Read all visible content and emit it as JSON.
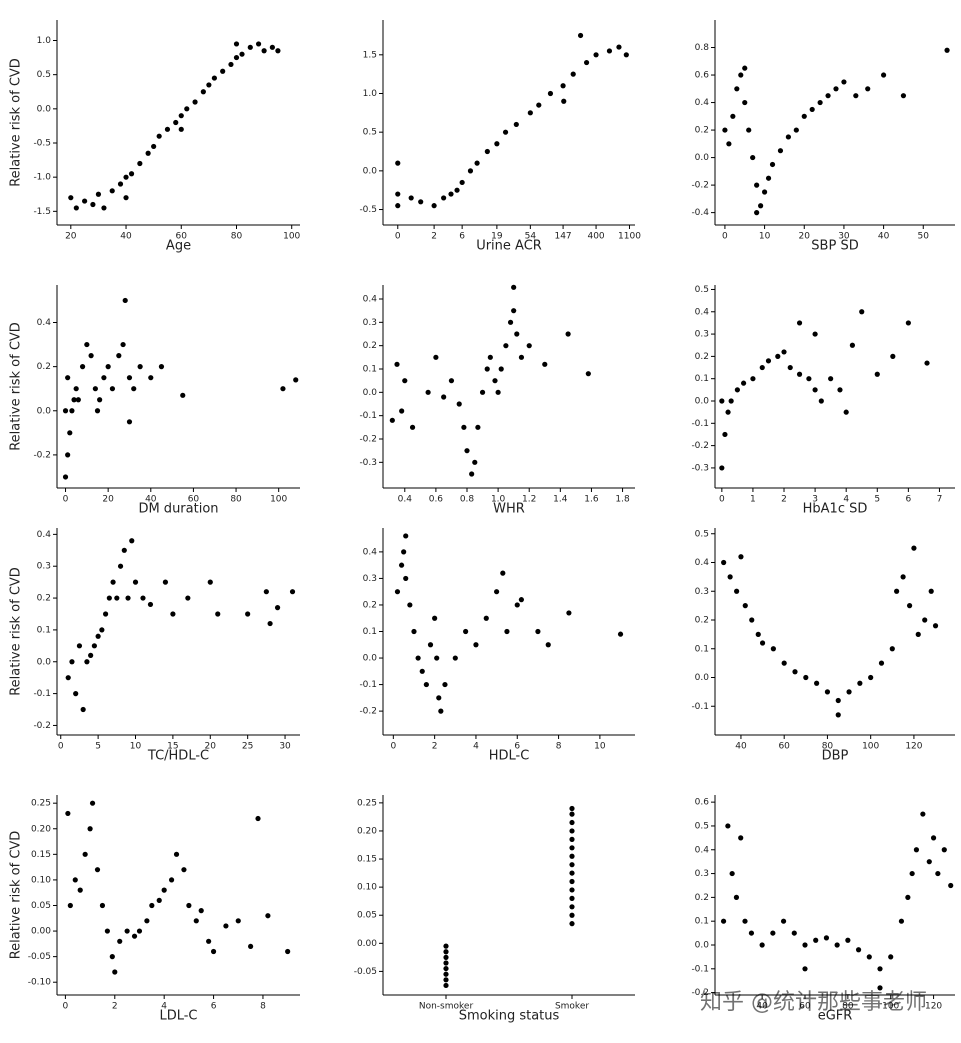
{
  "chart_data": [
    {
      "type": "scatter",
      "x_label": "Age",
      "y_label": "Relative risk of CVD",
      "color": "#000000",
      "xlim": [
        15,
        103
      ],
      "ylim": [
        -1.7,
        1.3
      ],
      "xticks": [
        20,
        40,
        60,
        80,
        100
      ],
      "yticks": [
        -1.5,
        {
          "value": -1,
          "label": "-1.0"
        },
        -0.5,
        {
          "value": 0,
          "label": "0.0"
        },
        0.5,
        {
          "value": 1,
          "label": "1.0"
        }
      ],
      "x": [
        20,
        22,
        25,
        28,
        30,
        32,
        35,
        38,
        40,
        42,
        45,
        48,
        50,
        52,
        55,
        58,
        60,
        62,
        65,
        68,
        70,
        72,
        75,
        78,
        80,
        82,
        85,
        88,
        90,
        93,
        95,
        40,
        60,
        80
      ],
      "values": [
        -1.3,
        -1.45,
        -1.35,
        -1.4,
        -1.25,
        -1.45,
        -1.2,
        -1.1,
        -1.0,
        -0.95,
        -0.8,
        -0.65,
        -0.55,
        -0.4,
        -0.3,
        -0.2,
        -0.1,
        0.0,
        0.1,
        0.25,
        0.35,
        0.45,
        0.55,
        0.65,
        0.75,
        0.8,
        0.9,
        0.95,
        0.85,
        0.9,
        0.85,
        -1.3,
        -0.3,
        0.95
      ]
    },
    {
      "type": "scatter",
      "x_label": "Urine ACR",
      "color": "#000000",
      "xscale": "log1p",
      "xlim": [
        -0.36,
        1300
      ],
      "ylim": [
        -0.7,
        1.95
      ],
      "xticks": [
        0,
        2,
        6,
        19,
        54,
        147,
        400,
        1100
      ],
      "yticks": [
        -0.5,
        {
          "value": 0,
          "label": "0.0"
        },
        0.5,
        {
          "value": 1,
          "label": "1.0"
        },
        1.5
      ],
      "x": [
        0,
        0,
        0,
        0.5,
        1,
        2,
        3,
        4,
        5,
        6,
        8,
        10,
        14,
        19,
        25,
        35,
        54,
        70,
        100,
        147,
        200,
        300,
        400,
        600,
        800,
        1000,
        250,
        150
      ],
      "values": [
        -0.3,
        0.1,
        -0.45,
        -0.35,
        -0.4,
        -0.45,
        -0.35,
        -0.3,
        -0.25,
        -0.15,
        0.0,
        0.1,
        0.25,
        0.35,
        0.5,
        0.6,
        0.75,
        0.85,
        1.0,
        1.1,
        1.25,
        1.4,
        1.5,
        1.55,
        1.6,
        1.5,
        1.75,
        0.9
      ]
    },
    {
      "type": "scatter",
      "x_label": "SBP SD",
      "color": "#000000",
      "xlim": [
        -2.5,
        58
      ],
      "ylim": [
        -0.49,
        1.0
      ],
      "xticks": [
        0,
        10,
        20,
        30,
        40,
        50
      ],
      "yticks": [
        -0.4,
        -0.2,
        {
          "value": 0,
          "label": "0.0"
        },
        0.2,
        0.4,
        0.6,
        0.8
      ],
      "x": [
        0,
        1,
        2,
        3,
        4,
        5,
        6,
        7,
        8,
        9,
        10,
        11,
        12,
        14,
        16,
        18,
        20,
        22,
        24,
        26,
        28,
        30,
        33,
        36,
        40,
        45,
        56,
        8,
        5
      ],
      "values": [
        0.2,
        0.1,
        0.3,
        0.5,
        0.6,
        0.4,
        0.2,
        0.0,
        -0.2,
        -0.35,
        -0.25,
        -0.15,
        -0.05,
        0.05,
        0.15,
        0.2,
        0.3,
        0.35,
        0.4,
        0.45,
        0.5,
        0.55,
        0.45,
        0.5,
        0.6,
        0.45,
        0.78,
        -0.4,
        0.65
      ]
    },
    {
      "type": "scatter",
      "x_label": "DM duration",
      "y_label": "Relative risk of CVD",
      "color": "#000000",
      "xlim": [
        -4,
        110
      ],
      "ylim": [
        -0.35,
        0.57
      ],
      "xticks": [
        0,
        20,
        40,
        60,
        80,
        100
      ],
      "yticks": [
        -0.2,
        {
          "value": 0,
          "label": "0.0"
        },
        0.2,
        0.4
      ],
      "x": [
        0,
        0,
        1,
        1,
        2,
        3,
        4,
        5,
        6,
        8,
        10,
        12,
        14,
        15,
        16,
        18,
        20,
        22,
        25,
        27,
        28,
        30,
        32,
        35,
        40,
        45,
        55,
        102,
        108,
        30
      ],
      "values": [
        0.0,
        -0.3,
        -0.2,
        0.15,
        -0.1,
        0.0,
        0.05,
        0.1,
        0.05,
        0.2,
        0.3,
        0.25,
        0.1,
        0.0,
        0.05,
        0.15,
        0.2,
        0.1,
        0.25,
        0.3,
        0.5,
        0.15,
        0.1,
        0.2,
        0.15,
        0.2,
        0.07,
        0.1,
        0.14,
        -0.05
      ]
    },
    {
      "type": "scatter",
      "x_label": "WHR",
      "color": "#000000",
      "xlim": [
        0.26,
        1.88
      ],
      "ylim": [
        -0.41,
        0.46
      ],
      "xticks": [
        0.4,
        0.6,
        0.8,
        {
          "value": 1,
          "label": "1.0"
        },
        1.2,
        1.4,
        1.6,
        1.8
      ],
      "yticks": [
        -0.3,
        -0.2,
        -0.1,
        {
          "value": 0,
          "label": "0.0"
        },
        0.1,
        0.2,
        0.3,
        0.4
      ],
      "x": [
        0.32,
        0.35,
        0.38,
        0.4,
        0.45,
        0.55,
        0.6,
        0.65,
        0.7,
        0.75,
        0.78,
        0.8,
        0.83,
        0.85,
        0.87,
        0.9,
        0.93,
        0.95,
        0.98,
        1.0,
        1.02,
        1.05,
        1.08,
        1.1,
        1.12,
        1.15,
        1.2,
        1.3,
        1.45,
        1.58,
        1.1
      ],
      "values": [
        -0.12,
        0.12,
        -0.08,
        0.05,
        -0.15,
        0.0,
        0.15,
        -0.02,
        0.05,
        -0.05,
        -0.15,
        -0.25,
        -0.35,
        -0.3,
        -0.15,
        0.0,
        0.1,
        0.15,
        0.05,
        0.0,
        0.1,
        0.2,
        0.3,
        0.35,
        0.25,
        0.15,
        0.2,
        0.12,
        0.25,
        0.08,
        0.45
      ]
    },
    {
      "type": "scatter",
      "x_label": "HbA1c SD",
      "color": "#000000",
      "xlim": [
        -0.22,
        7.5
      ],
      "ylim": [
        -0.39,
        0.52
      ],
      "xticks": [
        0,
        1,
        2,
        3,
        4,
        5,
        6,
        7
      ],
      "yticks": [
        -0.3,
        -0.2,
        -0.1,
        {
          "value": 0,
          "label": "0.0"
        },
        0.1,
        0.2,
        0.3,
        0.4,
        0.5
      ],
      "x": [
        0,
        0,
        0.1,
        0.2,
        0.3,
        0.5,
        0.7,
        1.0,
        1.3,
        1.5,
        1.8,
        2.0,
        2.2,
        2.5,
        2.8,
        3.0,
        3.2,
        3.5,
        3.8,
        4.0,
        4.2,
        4.5,
        5.0,
        5.5,
        6.0,
        6.6,
        3.0,
        2.5
      ],
      "values": [
        -0.3,
        0.0,
        -0.15,
        -0.05,
        0.0,
        0.05,
        0.08,
        0.1,
        0.15,
        0.18,
        0.2,
        0.22,
        0.15,
        0.12,
        0.1,
        0.05,
        0.0,
        0.1,
        0.05,
        -0.05,
        0.25,
        0.4,
        0.12,
        0.2,
        0.35,
        0.17,
        0.3,
        0.35
      ]
    },
    {
      "type": "scatter",
      "x_label": "TC/HDL-C",
      "y_label": "Relative risk of CVD",
      "color": "#000000",
      "xlim": [
        -0.5,
        32
      ],
      "ylim": [
        -0.23,
        0.42
      ],
      "xticks": [
        0,
        5,
        10,
        15,
        20,
        25,
        30
      ],
      "yticks": [
        -0.2,
        -0.1,
        {
          "value": 0,
          "label": "0.0"
        },
        0.1,
        0.2,
        0.3,
        0.4
      ],
      "x": [
        1,
        1.5,
        2,
        2.5,
        3,
        3.5,
        4,
        4.5,
        5,
        5.5,
        6,
        6.5,
        7,
        7.5,
        8,
        8.5,
        9,
        9.5,
        10,
        11,
        12,
        14,
        15,
        17,
        20,
        21,
        25,
        27.5,
        28,
        29,
        31
      ],
      "values": [
        -0.05,
        0.0,
        -0.1,
        0.05,
        -0.15,
        0.0,
        0.02,
        0.05,
        0.08,
        0.1,
        0.15,
        0.2,
        0.25,
        0.2,
        0.3,
        0.35,
        0.2,
        0.38,
        0.25,
        0.2,
        0.18,
        0.25,
        0.15,
        0.2,
        0.25,
        0.15,
        0.15,
        0.22,
        0.12,
        0.17,
        0.22
      ]
    },
    {
      "type": "scatter",
      "x_label": "HDL-C",
      "color": "#000000",
      "xlim": [
        -0.5,
        11.7
      ],
      "ylim": [
        -0.29,
        0.49
      ],
      "xticks": [
        0,
        2,
        4,
        6,
        8,
        10
      ],
      "yticks": [
        -0.2,
        -0.1,
        {
          "value": 0,
          "label": "0.0"
        },
        0.1,
        0.2,
        0.3,
        0.4
      ],
      "x": [
        0.2,
        0.4,
        0.5,
        0.6,
        0.8,
        1.0,
        1.2,
        1.4,
        1.6,
        1.8,
        2.0,
        2.1,
        2.2,
        2.3,
        2.5,
        3.0,
        3.5,
        4.0,
        4.5,
        5.0,
        5.3,
        5.5,
        6.0,
        6.2,
        7.0,
        7.5,
        8.5,
        11.0,
        0.6
      ],
      "values": [
        0.25,
        0.35,
        0.4,
        0.3,
        0.2,
        0.1,
        0.0,
        -0.05,
        -0.1,
        0.05,
        0.15,
        0.0,
        -0.15,
        -0.2,
        -0.1,
        0.0,
        0.1,
        0.05,
        0.15,
        0.25,
        0.32,
        0.1,
        0.2,
        0.22,
        0.1,
        0.05,
        0.17,
        0.09,
        0.46
      ]
    },
    {
      "type": "scatter",
      "x_label": "DBP",
      "color": "#000000",
      "xlim": [
        28,
        139
      ],
      "ylim": [
        -0.2,
        0.52
      ],
      "xticks": [
        40,
        60,
        80,
        100,
        120
      ],
      "yticks": [
        -0.1,
        {
          "value": 0,
          "label": "0.0"
        },
        0.1,
        0.2,
        0.3,
        0.4,
        0.5
      ],
      "x": [
        32,
        35,
        38,
        40,
        42,
        45,
        48,
        50,
        55,
        60,
        65,
        70,
        75,
        80,
        85,
        90,
        95,
        100,
        105,
        110,
        112,
        115,
        118,
        120,
        122,
        125,
        128,
        130,
        85
      ],
      "values": [
        0.4,
        0.35,
        0.3,
        0.42,
        0.25,
        0.2,
        0.15,
        0.12,
        0.1,
        0.05,
        0.02,
        0.0,
        -0.02,
        -0.05,
        -0.08,
        -0.05,
        -0.02,
        0.0,
        0.05,
        0.1,
        0.3,
        0.35,
        0.25,
        0.45,
        0.15,
        0.2,
        0.3,
        0.18,
        -0.13
      ]
    },
    {
      "type": "scatter",
      "x_label": "LDL-C",
      "y_label": "Relative risk of CVD",
      "color": "#000000",
      "xlim": [
        -0.34,
        9.5
      ],
      "ylim": [
        -0.125,
        0.266
      ],
      "xticks": [
        0,
        2,
        4,
        6,
        8
      ],
      "yticks": [
        {
          "value": -0.1,
          "label": "-0.10"
        },
        -0.05,
        {
          "value": 0,
          "label": "0.00"
        },
        0.05,
        {
          "value": 0.1,
          "label": "0.10"
        },
        0.15,
        {
          "value": 0.2,
          "label": "0.20"
        },
        0.25
      ],
      "x": [
        0.2,
        0.4,
        0.6,
        0.8,
        1.0,
        1.1,
        1.3,
        1.5,
        1.7,
        1.9,
        2.0,
        2.2,
        2.5,
        2.8,
        3.0,
        3.3,
        3.5,
        3.8,
        4.0,
        4.3,
        4.5,
        4.8,
        5.0,
        5.3,
        5.5,
        5.8,
        6.0,
        6.5,
        7.0,
        7.5,
        7.8,
        8.2,
        9.0,
        0.1
      ],
      "values": [
        0.05,
        0.1,
        0.08,
        0.15,
        0.2,
        0.25,
        0.12,
        0.05,
        0.0,
        -0.05,
        -0.08,
        -0.02,
        0.0,
        -0.01,
        0.0,
        0.02,
        0.05,
        0.06,
        0.08,
        0.1,
        0.15,
        0.12,
        0.05,
        0.02,
        0.04,
        -0.02,
        -0.04,
        0.01,
        0.02,
        -0.03,
        0.22,
        0.03,
        -0.04,
        0.23
      ]
    },
    {
      "type": "strip",
      "x_label": "Smoking status",
      "color": "#000000",
      "categories": [
        "Non-smoker",
        "Smoker"
      ],
      "ylim": [
        -0.092,
        0.264
      ],
      "yticks": [
        -0.05,
        {
          "value": 0,
          "label": "0.00"
        },
        0.05,
        {
          "value": 0.1,
          "label": "0.10"
        },
        0.15,
        {
          "value": 0.2,
          "label": "0.20"
        },
        0.25
      ],
      "values": [
        [
          -0.075,
          -0.065,
          -0.055,
          -0.045,
          -0.035,
          -0.025,
          -0.015,
          -0.005
        ],
        [
          0.035,
          0.05,
          0.065,
          0.08,
          0.095,
          0.11,
          0.125,
          0.14,
          0.155,
          0.17,
          0.185,
          0.2,
          0.215,
          0.23,
          0.24
        ]
      ]
    },
    {
      "type": "scatter",
      "x_label": "eGFR",
      "color": "#000000",
      "xlim": [
        18,
        130
      ],
      "ylim": [
        -0.21,
        0.63
      ],
      "xticks": [
        40,
        60,
        80,
        100,
        120
      ],
      "yticks": [
        -0.2,
        -0.1,
        {
          "value": 0,
          "label": "0.0"
        },
        0.1,
        0.2,
        0.3,
        0.4,
        0.5,
        0.6
      ],
      "x": [
        22,
        24,
        26,
        28,
        30,
        32,
        35,
        40,
        45,
        50,
        55,
        60,
        65,
        70,
        75,
        80,
        85,
        90,
        95,
        100,
        105,
        108,
        110,
        112,
        115,
        118,
        120,
        122,
        125,
        128,
        95,
        60
      ],
      "values": [
        0.1,
        0.5,
        0.3,
        0.2,
        0.45,
        0.1,
        0.05,
        0.0,
        0.05,
        0.1,
        0.05,
        0.0,
        0.02,
        0.03,
        0.0,
        0.02,
        -0.02,
        -0.05,
        -0.1,
        -0.05,
        0.1,
        0.2,
        0.3,
        0.4,
        0.55,
        0.35,
        0.45,
        0.3,
        0.4,
        0.25,
        -0.18,
        -0.1
      ]
    }
  ],
  "watermark": "知乎 @统计那些事老师"
}
